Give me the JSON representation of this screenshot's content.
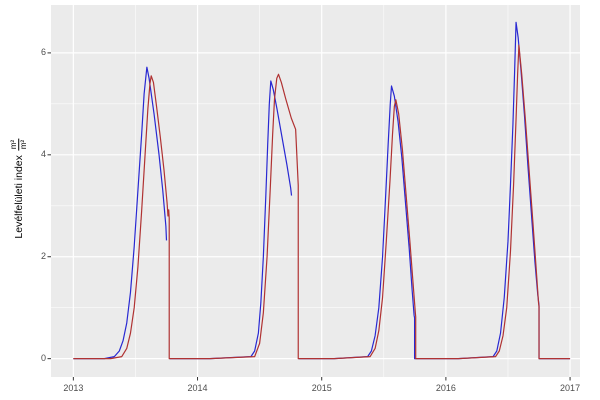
{
  "chart_data": {
    "type": "line",
    "title": "",
    "xlabel": "",
    "ylabel": "Levélfelületi index (m²/m²)",
    "ylabel_text": "Levélfelületi index",
    "ylabel_frac_numerator": "m²",
    "ylabel_frac_denominator": "m²",
    "x_tick_labels": [
      "2013",
      "2014",
      "2015",
      "2016",
      "2017"
    ],
    "x_ticks": [
      2013,
      2014,
      2015,
      2016,
      2017
    ],
    "y_tick_labels": [
      "0",
      "2",
      "4",
      "6"
    ],
    "y_ticks": [
      0,
      2,
      4,
      6
    ],
    "x_minor_ticks": [
      2013.5,
      2014.5,
      2015.5,
      2016.5
    ],
    "y_minor_ticks": [
      1,
      3,
      5
    ],
    "xlim": [
      2012.82,
      2017.08
    ],
    "ylim": [
      -0.36,
      6.94
    ],
    "grid": "on",
    "legend": "none",
    "panel_background": "#EBEBEB",
    "grid_major_color": "#FFFFFF",
    "grid_minor_color": "#FFFFFF",
    "tick_mark_color": "#333333",
    "tick_label_color": "#4D4D4D",
    "series": [
      {
        "name": "blue-line",
        "color": "#2828D2",
        "points": [
          [
            2013.0,
            0
          ],
          [
            2013.25,
            0
          ],
          [
            2013.33,
            0.04
          ],
          [
            2013.37,
            0.15
          ],
          [
            2013.4,
            0.35
          ],
          [
            2013.43,
            0.7
          ],
          [
            2013.46,
            1.3
          ],
          [
            2013.49,
            2.2
          ],
          [
            2013.52,
            3.3
          ],
          [
            2013.55,
            4.4
          ],
          [
            2013.57,
            5.2
          ],
          [
            2013.592,
            5.72
          ],
          [
            2013.61,
            5.5
          ],
          [
            2013.65,
            4.8
          ],
          [
            2013.69,
            4.0
          ],
          [
            2013.72,
            3.3
          ],
          [
            2013.745,
            2.6
          ],
          [
            2013.75,
            2.32
          ],
          null,
          [
            2013.775,
            0
          ],
          [
            2014.1,
            0
          ],
          [
            2014.43,
            0.04
          ],
          [
            2014.46,
            0.15
          ],
          [
            2014.49,
            0.5
          ],
          [
            2014.51,
            1.1
          ],
          [
            2014.53,
            2.0
          ],
          [
            2014.55,
            3.2
          ],
          [
            2014.565,
            4.2
          ],
          [
            2014.578,
            5.0
          ],
          [
            2014.59,
            5.45
          ],
          [
            2014.61,
            5.28
          ],
          [
            2014.64,
            4.9
          ],
          [
            2014.68,
            4.35
          ],
          [
            2014.72,
            3.8
          ],
          [
            2014.75,
            3.35
          ],
          [
            2014.757,
            3.2
          ],
          null,
          [
            2014.815,
            0
          ],
          [
            2015.1,
            0
          ],
          [
            2015.37,
            0.04
          ],
          [
            2015.4,
            0.15
          ],
          [
            2015.43,
            0.45
          ],
          [
            2015.46,
            1.0
          ],
          [
            2015.49,
            2.0
          ],
          [
            2015.515,
            3.2
          ],
          [
            2015.535,
            4.2
          ],
          [
            2015.552,
            5.0
          ],
          [
            2015.562,
            5.35
          ],
          [
            2015.585,
            5.15
          ],
          [
            2015.615,
            4.65
          ],
          [
            2015.645,
            3.95
          ],
          [
            2015.675,
            3.05
          ],
          [
            2015.705,
            2.15
          ],
          [
            2015.728,
            1.35
          ],
          [
            2015.744,
            0.85
          ],
          [
            2015.748,
            0.8
          ],
          [
            2015.748,
            0
          ],
          [
            2016.1,
            0
          ],
          [
            2016.38,
            0.04
          ],
          [
            2016.41,
            0.15
          ],
          [
            2016.44,
            0.5
          ],
          [
            2016.47,
            1.2
          ],
          [
            2016.5,
            2.3
          ],
          [
            2016.52,
            3.4
          ],
          [
            2016.54,
            4.6
          ],
          [
            2016.553,
            5.6
          ],
          [
            2016.565,
            6.6
          ],
          [
            2016.582,
            6.3
          ],
          [
            2016.605,
            5.65
          ],
          [
            2016.632,
            4.8
          ],
          [
            2016.66,
            3.8
          ],
          [
            2016.69,
            2.8
          ],
          [
            2016.717,
            1.9
          ],
          [
            2016.74,
            1.25
          ],
          [
            2016.75,
            1.05
          ],
          [
            2016.75,
            0
          ],
          [
            2017.0,
            0
          ]
        ]
      },
      {
        "name": "red-line",
        "color": "#B03232",
        "points": [
          [
            2013.0,
            0
          ],
          [
            2013.3,
            0
          ],
          [
            2013.39,
            0.04
          ],
          [
            2013.43,
            0.2
          ],
          [
            2013.46,
            0.5
          ],
          [
            2013.49,
            1.0
          ],
          [
            2013.52,
            1.8
          ],
          [
            2013.55,
            2.9
          ],
          [
            2013.58,
            4.1
          ],
          [
            2013.6,
            4.9
          ],
          [
            2013.617,
            5.4
          ],
          [
            2013.627,
            5.55
          ],
          [
            2013.645,
            5.42
          ],
          [
            2013.67,
            4.95
          ],
          [
            2013.7,
            4.35
          ],
          [
            2013.73,
            3.7
          ],
          [
            2013.755,
            3.05
          ],
          [
            2013.762,
            2.8
          ],
          [
            2013.768,
            2.92
          ],
          [
            2013.772,
            2.75
          ],
          [
            2013.772,
            0
          ],
          [
            2014.1,
            0
          ],
          [
            2014.46,
            0.04
          ],
          [
            2014.5,
            0.3
          ],
          [
            2014.53,
            0.9
          ],
          [
            2014.56,
            2.0
          ],
          [
            2014.585,
            3.3
          ],
          [
            2014.605,
            4.4
          ],
          [
            2014.62,
            5.1
          ],
          [
            2014.638,
            5.5
          ],
          [
            2014.652,
            5.58
          ],
          [
            2014.675,
            5.42
          ],
          [
            2014.71,
            5.1
          ],
          [
            2014.755,
            4.72
          ],
          [
            2014.79,
            4.5
          ],
          [
            2014.811,
            3.4
          ],
          [
            2014.811,
            0
          ],
          [
            2015.1,
            0
          ],
          [
            2015.39,
            0.04
          ],
          [
            2015.43,
            0.2
          ],
          [
            2015.46,
            0.55
          ],
          [
            2015.49,
            1.2
          ],
          [
            2015.52,
            2.3
          ],
          [
            2015.55,
            3.5
          ],
          [
            2015.57,
            4.4
          ],
          [
            2015.585,
            4.95
          ],
          [
            2015.597,
            5.08
          ],
          [
            2015.62,
            4.8
          ],
          [
            2015.65,
            4.1
          ],
          [
            2015.68,
            3.2
          ],
          [
            2015.71,
            2.3
          ],
          [
            2015.735,
            1.5
          ],
          [
            2015.754,
            0.9
          ],
          [
            2015.757,
            0.82
          ],
          [
            2015.757,
            0
          ],
          [
            2016.1,
            0
          ],
          [
            2016.4,
            0.04
          ],
          [
            2016.43,
            0.15
          ],
          [
            2016.46,
            0.45
          ],
          [
            2016.49,
            1.0
          ],
          [
            2016.52,
            2.1
          ],
          [
            2016.545,
            3.4
          ],
          [
            2016.565,
            4.7
          ],
          [
            2016.578,
            5.6
          ],
          [
            2016.588,
            6.15
          ],
          [
            2016.61,
            5.6
          ],
          [
            2016.64,
            4.7
          ],
          [
            2016.67,
            3.7
          ],
          [
            2016.7,
            2.7
          ],
          [
            2016.726,
            1.8
          ],
          [
            2016.746,
            1.1
          ],
          [
            2016.75,
            1.02
          ],
          [
            2016.75,
            0
          ],
          [
            2017.0,
            0
          ]
        ]
      }
    ]
  }
}
